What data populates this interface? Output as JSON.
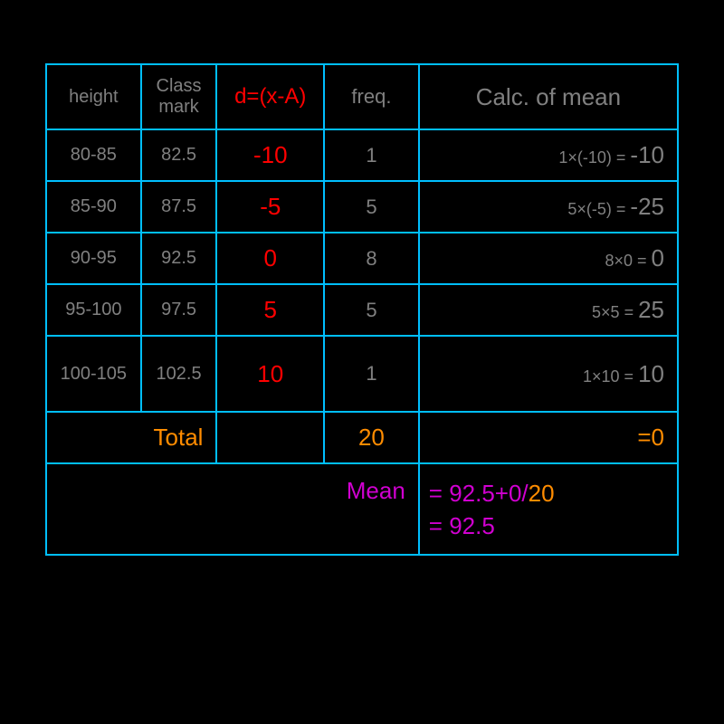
{
  "headers": {
    "height": "height",
    "classmark": "Class mark",
    "d": "d=(x-A)",
    "freq": "freq.",
    "calc": "Calc. of mean"
  },
  "rows": [
    {
      "height": "80-85",
      "mark": "82.5",
      "d": "-10",
      "freq": "1",
      "calc_lhs": "1×(-10) = ",
      "calc_rhs": "-10"
    },
    {
      "height": "85-90",
      "mark": "87.5",
      "d": "-5",
      "freq": "5",
      "calc_lhs": "5×(-5) = ",
      "calc_rhs": "-25"
    },
    {
      "height": "90-95",
      "mark": "92.5",
      "d": "0",
      "freq": "8",
      "calc_lhs": "8×0 = ",
      "calc_rhs": "0"
    },
    {
      "height": "95-100",
      "mark": "97.5",
      "d": "5",
      "freq": "5",
      "calc_lhs": "5×5 = ",
      "calc_rhs": "25"
    },
    {
      "height": "100-105",
      "mark": "102.5",
      "d": "10",
      "freq": "1",
      "calc_lhs": "1×10 = ",
      "calc_rhs": "10"
    }
  ],
  "total": {
    "label": "Total",
    "freq": "20",
    "eq": "=0"
  },
  "mean": {
    "label": "Mean",
    "line1_a": "= 92.5+0/",
    "line1_b": "20",
    "line2": "= 92.5"
  },
  "colors": {
    "background": "#000000",
    "border": "#00bfff",
    "grey": "#808080",
    "red": "#ff0000",
    "orange": "#ff8c00",
    "magenta": "#d000d0"
  }
}
